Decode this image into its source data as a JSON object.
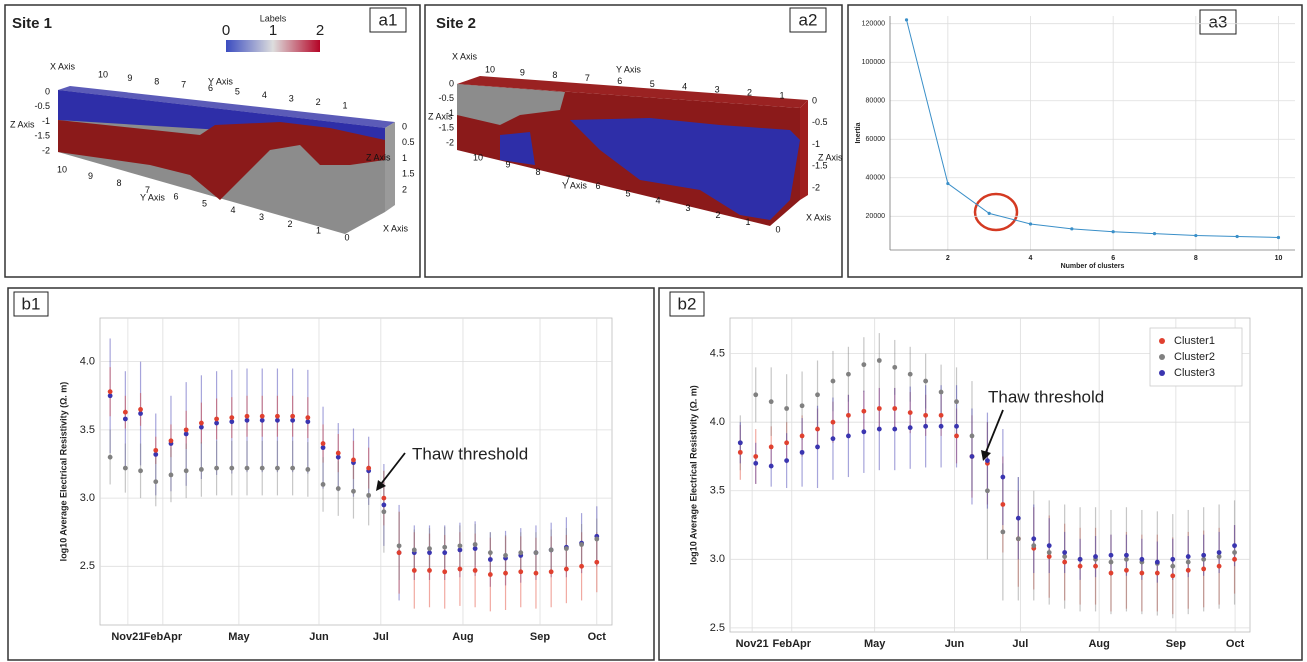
{
  "renders": [
    {
      "title": "Site 1",
      "panel_label": "a1",
      "colorbar": {
        "title": "Labels",
        "ticks": [
          0,
          1,
          2
        ]
      },
      "top_label": "X Axis",
      "top_ticks": [
        10,
        9,
        8,
        7,
        6,
        5,
        4,
        3,
        2,
        1
      ],
      "top_label2": "Y Axis",
      "left_label": "Z Axis",
      "left_ticks": [
        0,
        -0.5,
        -1,
        -1.5,
        -2
      ],
      "bottom_label": "Y Axis",
      "bottom_ticks": [
        10,
        9,
        8,
        7,
        6,
        5,
        4,
        3,
        2,
        1,
        0
      ],
      "right_label": "Z Axis",
      "right_ticks": [
        0,
        0.5,
        1,
        1.5,
        2
      ],
      "corner_label": "X Axis"
    },
    {
      "title": "Site 2",
      "panel_label": "a2",
      "top_label": "X Axis",
      "top_ticks": [
        10,
        9,
        8,
        7,
        6,
        5,
        4,
        3,
        2,
        1
      ],
      "top_label2": "Y Axis",
      "left_label": "Z Axis",
      "left_ticks": [
        0,
        -0.5,
        -1,
        -1.5,
        -2
      ],
      "bottom_label": "Y Axis",
      "bottom_ticks": [
        10,
        9,
        8,
        7,
        6,
        5,
        4,
        3,
        2,
        1,
        0
      ],
      "right_label": "Z Axis",
      "right_ticks": [
        0,
        -0.5,
        -1,
        -1.5,
        -2
      ],
      "corner_label": "X Axis"
    }
  ],
  "chart_data": [
    {
      "type": "line",
      "panel_label": "a3",
      "xlabel": "Number of clusters",
      "ylabel": "Inertia",
      "x": [
        1,
        2,
        3,
        4,
        5,
        6,
        7,
        8,
        9,
        10
      ],
      "values": [
        122000,
        37000,
        21500,
        16000,
        13500,
        12000,
        11000,
        10000,
        9500,
        9000
      ],
      "color": "#3a8fc8",
      "xlim": [
        0.6,
        10.4
      ],
      "ylim": [
        2500,
        124000
      ],
      "xticks": [
        2,
        4,
        6,
        8,
        10
      ],
      "yticks": [
        20000,
        40000,
        60000,
        80000,
        100000,
        120000
      ],
      "grid": true
    },
    {
      "type": "scatter",
      "panel_label": "b1",
      "ylabel": "log10 Average Electrical Resistivity (Ω. m)",
      "annotations": [
        {
          "text": "Thaw threshold"
        }
      ],
      "grid": true,
      "legend": false,
      "xlim": [
        -2,
        99
      ],
      "ylim": [
        2.07,
        4.32
      ],
      "xticks": [
        {
          "value": 3.5,
          "label": "Nov21"
        },
        {
          "value": 10.4,
          "label": "FebApr"
        },
        {
          "value": 25.4,
          "label": "May"
        },
        {
          "value": 41.2,
          "label": "Jun"
        },
        {
          "value": 53.4,
          "label": "Jul"
        },
        {
          "value": 69.6,
          "label": "Aug"
        },
        {
          "value": 84.8,
          "label": "Sep"
        },
        {
          "value": 96.0,
          "label": "Oct"
        }
      ],
      "yticks": [
        2.5,
        {
          "value": 3,
          "label": "3.0"
        },
        3.5,
        {
          "value": 4,
          "label": "4.0"
        }
      ],
      "x": [
        0,
        3,
        6,
        9,
        12,
        15,
        18,
        21,
        24,
        27,
        30,
        33,
        36,
        39,
        42,
        45,
        48,
        51,
        54,
        57,
        60,
        63,
        66,
        69,
        72,
        75,
        78,
        81,
        84,
        87,
        90,
        93,
        96
      ],
      "series": [
        {
          "color": "#3a35b0",
          "values": [
            3.75,
            3.58,
            3.62,
            3.32,
            3.4,
            3.47,
            3.52,
            3.55,
            3.56,
            3.57,
            3.57,
            3.57,
            3.57,
            3.56,
            3.37,
            3.3,
            3.26,
            3.2,
            2.95,
            2.6,
            2.6,
            2.6,
            2.6,
            2.62,
            2.63,
            2.55,
            2.56,
            2.58,
            2.6,
            2.62,
            2.64,
            2.67,
            2.72
          ],
          "errors": [
            0.42,
            0.35,
            0.38,
            0.3,
            0.35,
            0.38,
            0.38,
            0.38,
            0.38,
            0.38,
            0.38,
            0.38,
            0.38,
            0.38,
            0.3,
            0.25,
            0.25,
            0.25,
            0.3,
            0.35,
            0.2,
            0.2,
            0.2,
            0.2,
            0.2,
            0.2,
            0.2,
            0.2,
            0.2,
            0.2,
            0.22,
            0.22,
            0.22
          ]
        },
        {
          "color": "#e0402f",
          "values": [
            3.78,
            3.63,
            3.65,
            3.35,
            3.42,
            3.5,
            3.55,
            3.58,
            3.59,
            3.6,
            3.6,
            3.6,
            3.6,
            3.59,
            3.4,
            3.33,
            3.28,
            3.22,
            3.0,
            2.6,
            2.47,
            2.47,
            2.46,
            2.48,
            2.47,
            2.44,
            2.45,
            2.46,
            2.45,
            2.46,
            2.48,
            2.5,
            2.53
          ],
          "errors": [
            0.18,
            0.12,
            0.12,
            0.1,
            0.12,
            0.14,
            0.15,
            0.15,
            0.15,
            0.15,
            0.15,
            0.15,
            0.15,
            0.15,
            0.14,
            0.14,
            0.14,
            0.15,
            0.2,
            0.3,
            0.28,
            0.27,
            0.27,
            0.27,
            0.27,
            0.27,
            0.27,
            0.26,
            0.26,
            0.26,
            0.25,
            0.25,
            0.22
          ]
        },
        {
          "color": "#808080",
          "values": [
            3.3,
            3.22,
            3.2,
            3.12,
            3.17,
            3.2,
            3.21,
            3.22,
            3.22,
            3.22,
            3.22,
            3.22,
            3.22,
            3.21,
            3.1,
            3.07,
            3.05,
            3.02,
            2.9,
            2.65,
            2.62,
            2.63,
            2.64,
            2.65,
            2.66,
            2.6,
            2.58,
            2.6,
            2.6,
            2.62,
            2.63,
            2.66,
            2.7
          ],
          "errors": [
            0.2,
            0.18,
            0.2,
            0.18,
            0.2,
            0.2,
            0.2,
            0.2,
            0.2,
            0.2,
            0.2,
            0.2,
            0.2,
            0.2,
            0.2,
            0.2,
            0.2,
            0.22,
            0.3,
            0.25,
            0.15,
            0.15,
            0.15,
            0.15,
            0.15,
            0.15,
            0.15,
            0.15,
            0.15,
            0.15,
            0.15,
            0.15,
            0.15
          ]
        }
      ]
    },
    {
      "type": "scatter",
      "panel_label": "b2",
      "ylabel": "log10 Average Electrical Resistivity (Ω. m)",
      "annotations": [
        {
          "text": "Thaw threshold"
        }
      ],
      "grid": true,
      "legend": "upper right",
      "xlim": [
        -2,
        99
      ],
      "ylim": [
        2.47,
        4.76
      ],
      "xticks": [
        {
          "value": 2.3,
          "label": "Nov21"
        },
        {
          "value": 10.0,
          "label": "FebApr"
        },
        {
          "value": 26.1,
          "label": "May"
        },
        {
          "value": 41.6,
          "label": "Jun"
        },
        {
          "value": 54.4,
          "label": "Jul"
        },
        {
          "value": 69.7,
          "label": "Aug"
        },
        {
          "value": 84.6,
          "label": "Sep"
        },
        {
          "value": 96.1,
          "label": "Oct"
        }
      ],
      "yticks": [
        2.5,
        {
          "value": 3,
          "label": "3.0"
        },
        3.5,
        {
          "value": 4,
          "label": "4.0"
        },
        4.5
      ],
      "x": [
        0,
        3,
        6,
        9,
        12,
        15,
        18,
        21,
        24,
        27,
        30,
        33,
        36,
        39,
        42,
        45,
        48,
        51,
        54,
        57,
        60,
        63,
        66,
        69,
        72,
        75,
        78,
        81,
        84,
        87,
        90,
        93,
        96
      ],
      "series": [
        {
          "name": "Cluster1",
          "color": "#e0402f",
          "values": [
            3.78,
            3.75,
            3.82,
            3.85,
            3.9,
            3.95,
            4.0,
            4.05,
            4.08,
            4.1,
            4.1,
            4.07,
            4.05,
            4.05,
            3.9,
            3.75,
            3.7,
            3.4,
            3.15,
            3.08,
            3.02,
            2.98,
            2.95,
            2.95,
            2.9,
            2.92,
            2.9,
            2.9,
            2.88,
            2.92,
            2.93,
            2.95,
            3.0
          ],
          "errors": [
            0.2,
            0.2,
            0.15,
            0.15,
            0.15,
            0.15,
            0.15,
            0.15,
            0.15,
            0.15,
            0.15,
            0.15,
            0.15,
            0.15,
            0.2,
            0.3,
            0.3,
            0.35,
            0.35,
            0.3,
            0.3,
            0.28,
            0.28,
            0.28,
            0.28,
            0.28,
            0.28,
            0.28,
            0.28,
            0.28,
            0.28,
            0.28,
            0.25
          ]
        },
        {
          "name": "Cluster2",
          "color": "#808080",
          "values": [
            3.85,
            4.2,
            4.15,
            4.1,
            4.12,
            4.2,
            4.3,
            4.35,
            4.42,
            4.45,
            4.4,
            4.35,
            4.3,
            4.22,
            4.15,
            3.9,
            3.5,
            3.2,
            3.15,
            3.1,
            3.05,
            3.02,
            3.0,
            3.0,
            2.98,
            3.0,
            2.98,
            2.97,
            2.95,
            2.98,
            3.0,
            3.02,
            3.05
          ],
          "errors": [
            0.2,
            0.2,
            0.25,
            0.25,
            0.25,
            0.25,
            0.22,
            0.2,
            0.2,
            0.2,
            0.2,
            0.2,
            0.2,
            0.2,
            0.25,
            0.4,
            0.5,
            0.5,
            0.45,
            0.4,
            0.38,
            0.38,
            0.38,
            0.38,
            0.38,
            0.38,
            0.38,
            0.38,
            0.38,
            0.38,
            0.38,
            0.38,
            0.38
          ]
        },
        {
          "name": "Cluster3",
          "color": "#3a35b0",
          "values": [
            3.85,
            3.7,
            3.68,
            3.72,
            3.78,
            3.82,
            3.88,
            3.9,
            3.93,
            3.95,
            3.95,
            3.96,
            3.97,
            3.97,
            3.97,
            3.75,
            3.72,
            3.6,
            3.3,
            3.15,
            3.1,
            3.05,
            3.0,
            3.02,
            3.03,
            3.03,
            3.0,
            2.98,
            3.0,
            3.02,
            3.03,
            3.05,
            3.1
          ],
          "errors": [
            0.15,
            0.15,
            0.15,
            0.2,
            0.25,
            0.3,
            0.3,
            0.3,
            0.3,
            0.3,
            0.3,
            0.3,
            0.3,
            0.3,
            0.3,
            0.35,
            0.35,
            0.35,
            0.3,
            0.25,
            0.2,
            0.15,
            0.15,
            0.15,
            0.15,
            0.15,
            0.15,
            0.15,
            0.15,
            0.15,
            0.15,
            0.15,
            0.15
          ]
        }
      ]
    }
  ]
}
